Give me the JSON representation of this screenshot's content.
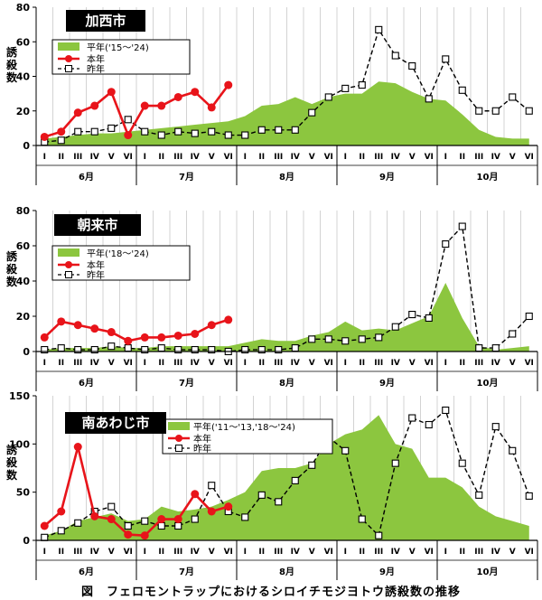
{
  "figure_caption": "図　フェロモントラップにおけるシロイチモジヨトウ誘殺数の推移",
  "colors": {
    "average_fill": "#8cc63f",
    "this_year": "#e8141a",
    "last_year": "#000000",
    "grid": "#c8c8c8"
  },
  "chart_data": [
    {
      "type": "line",
      "title": "加西市",
      "ylabel": "誘殺数",
      "ylim": [
        0,
        80
      ],
      "yticks": [
        0,
        20,
        40,
        60,
        80
      ],
      "x_ticks": [
        "I",
        "II",
        "III",
        "IV",
        "V",
        "VI",
        "I",
        "II",
        "III",
        "IV",
        "V",
        "VI",
        "I",
        "II",
        "III",
        "IV",
        "V",
        "VI",
        "I",
        "II",
        "III",
        "IV",
        "V",
        "VI",
        "I",
        "II",
        "III",
        "IV",
        "V",
        "VI"
      ],
      "months": [
        "6月",
        "7月",
        "8月",
        "9月",
        "10月"
      ],
      "legend": [
        "平年('15～'24)",
        "本年",
        "昨年"
      ],
      "legend_position": "top-left",
      "grid": true,
      "series": [
        {
          "name": "平年('15～'24)",
          "type": "area",
          "values": [
            4,
            5,
            6,
            7,
            7,
            8,
            9,
            10,
            11,
            12,
            13,
            14,
            17,
            23,
            24,
            28,
            24,
            28,
            30,
            30,
            37,
            36,
            31,
            27,
            26,
            18,
            9,
            5,
            4,
            4
          ]
        },
        {
          "name": "本年",
          "type": "line",
          "values": [
            5,
            8,
            19,
            23,
            31,
            6,
            23,
            23,
            28,
            31,
            22,
            35
          ]
        },
        {
          "name": "昨年",
          "type": "line",
          "values": [
            2,
            3,
            8,
            8,
            10,
            15,
            8,
            6,
            8,
            7,
            8,
            6,
            6,
            9,
            9,
            9,
            19,
            28,
            33,
            35,
            67,
            52,
            46,
            27,
            50,
            32,
            20,
            20,
            28,
            20
          ]
        }
      ]
    },
    {
      "type": "line",
      "title": "朝来市",
      "ylabel": "誘殺数",
      "ylim": [
        0,
        80
      ],
      "yticks": [
        0,
        20,
        40,
        60,
        80
      ],
      "x_ticks": [
        "I",
        "II",
        "III",
        "IV",
        "V",
        "VI",
        "I",
        "II",
        "III",
        "IV",
        "V",
        "VI",
        "I",
        "II",
        "III",
        "IV",
        "V",
        "VI",
        "I",
        "II",
        "III",
        "IV",
        "V",
        "VI",
        "I",
        "II",
        "III",
        "IV",
        "V",
        "VI"
      ],
      "months": [
        "6月",
        "7月",
        "8月",
        "9月",
        "10月"
      ],
      "legend": [
        "平年('18～'24)",
        "本年",
        "昨年"
      ],
      "legend_position": "top-left",
      "grid": true,
      "series": [
        {
          "name": "平年('18～'24)",
          "type": "area",
          "values": [
            1,
            2,
            2,
            2,
            3,
            2,
            2,
            3,
            3,
            3,
            3,
            3,
            5,
            7,
            6,
            6,
            9,
            11,
            17,
            12,
            13,
            12,
            16,
            20,
            39,
            19,
            3,
            1,
            2,
            3
          ]
        },
        {
          "name": "本年",
          "type": "line",
          "values": [
            8,
            17,
            15,
            13,
            11,
            6,
            8,
            8,
            9,
            10,
            15,
            18
          ]
        },
        {
          "name": "昨年",
          "type": "line",
          "values": [
            1,
            2,
            1,
            1,
            3,
            2,
            1,
            2,
            1,
            1,
            1,
            0,
            1,
            1,
            1,
            2,
            7,
            7,
            6,
            7,
            8,
            14,
            21,
            19,
            61,
            71,
            2,
            2,
            10,
            20
          ]
        }
      ]
    },
    {
      "type": "line",
      "title": "南あわじ市",
      "ylabel": "誘殺数",
      "ylim": [
        0,
        150
      ],
      "yticks": [
        0,
        50,
        100,
        150
      ],
      "x_ticks": [
        "I",
        "II",
        "III",
        "IV",
        "V",
        "VI",
        "I",
        "II",
        "III",
        "IV",
        "V",
        "VI",
        "I",
        "II",
        "III",
        "IV",
        "V",
        "VI",
        "I",
        "II",
        "III",
        "IV",
        "V",
        "VI",
        "I",
        "II",
        "III",
        "IV",
        "V",
        "VI"
      ],
      "months": [
        "6月",
        "7月",
        "8月",
        "9月",
        "10月"
      ],
      "legend": [
        "平年('11～'13,'18～'24)",
        "本年",
        "昨年"
      ],
      "legend_position": "top",
      "grid": true,
      "series": [
        {
          "name": "平年('11～'13,'18～'24)",
          "type": "area",
          "values": [
            5,
            10,
            20,
            24,
            28,
            20,
            22,
            35,
            30,
            32,
            35,
            42,
            50,
            72,
            75,
            75,
            80,
            100,
            110,
            115,
            130,
            100,
            95,
            65,
            65,
            55,
            35,
            25,
            20,
            15
          ]
        },
        {
          "name": "本年",
          "type": "line",
          "values": [
            15,
            30,
            97,
            25,
            22,
            6,
            5,
            22,
            22,
            48,
            30,
            35
          ]
        },
        {
          "name": "昨年",
          "type": "line",
          "values": [
            3,
            10,
            18,
            30,
            35,
            15,
            20,
            15,
            15,
            22,
            57,
            30,
            24,
            47,
            40,
            62,
            78,
            107,
            93,
            22,
            5,
            80,
            127,
            120,
            135,
            80,
            47,
            118,
            93,
            46
          ]
        }
      ]
    }
  ]
}
